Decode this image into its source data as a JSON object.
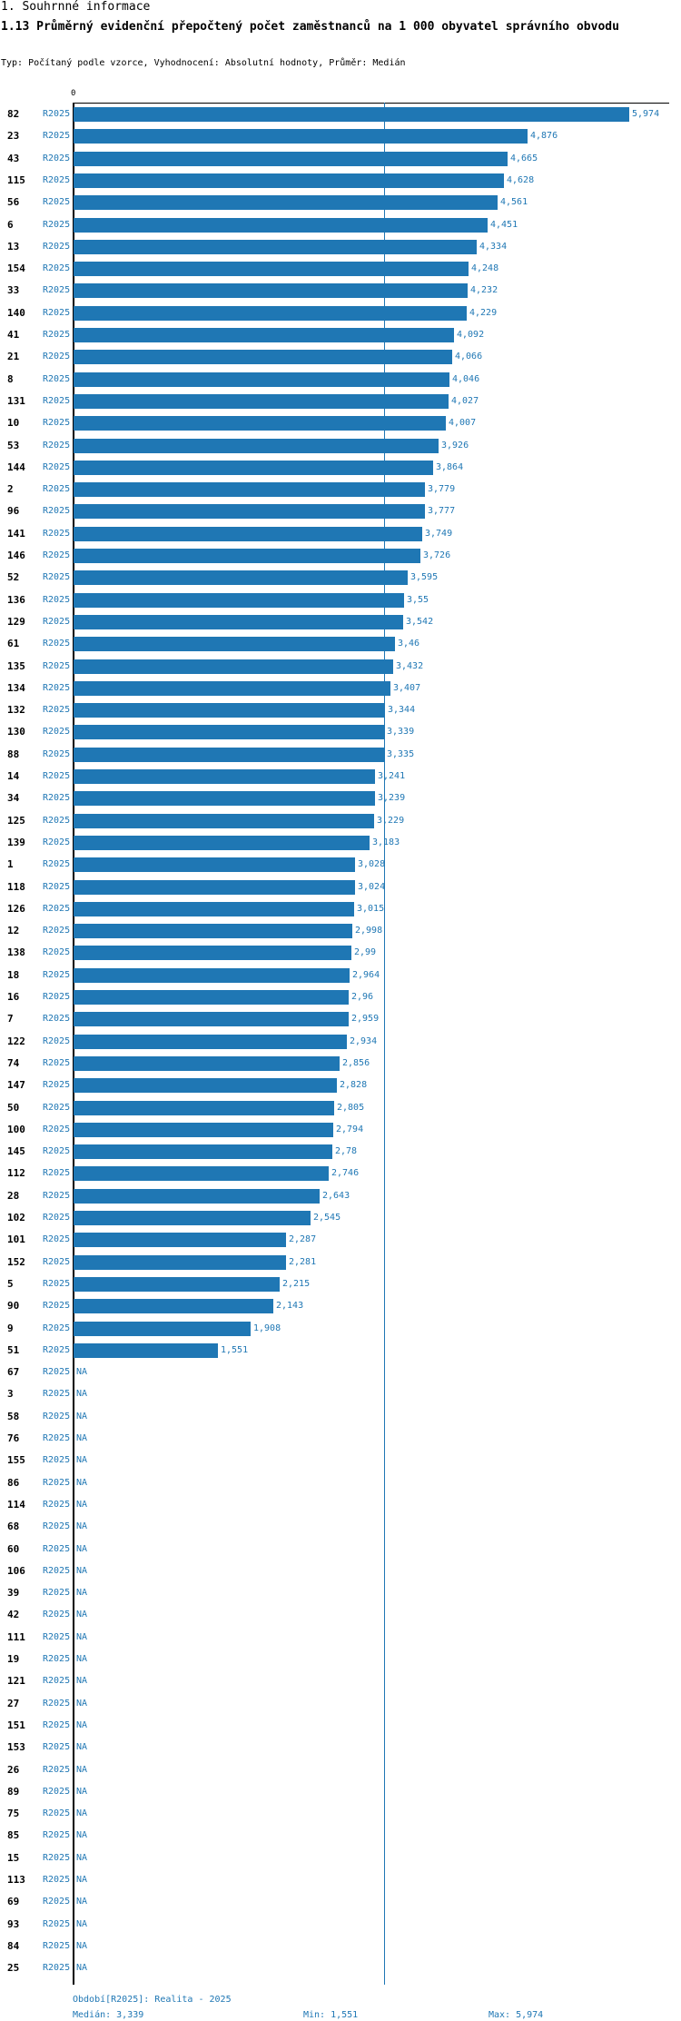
{
  "header": {
    "section": "1. Souhrnné informace",
    "title": "1.13 Průměrný evidenční přepočtený počet zaměstnanců na 1 000 obyvatel správního obvodu",
    "subtitle": "Typ: Počítaný podle vzorce, Vyhodnocení: Absolutní hodnoty, Průměr: Medián"
  },
  "chart_data": {
    "type": "bar",
    "orientation": "horizontal",
    "title": "1.13 Průměrný evidenční přepočtený počet zaměstnanců na 1 000 obyvatel správního obvodu",
    "series_name": "R2025",
    "axis_zero_label": "0",
    "xlim": [
      0,
      5974
    ],
    "median": 3339,
    "missing_label": "NA",
    "rows": [
      {
        "id": "82",
        "value": 5974,
        "label": "5,974"
      },
      {
        "id": "23",
        "value": 4876,
        "label": "4,876"
      },
      {
        "id": "43",
        "value": 4665,
        "label": "4,665"
      },
      {
        "id": "115",
        "value": 4628,
        "label": "4,628"
      },
      {
        "id": "56",
        "value": 4561,
        "label": "4,561"
      },
      {
        "id": "6",
        "value": 4451,
        "label": "4,451"
      },
      {
        "id": "13",
        "value": 4334,
        "label": "4,334"
      },
      {
        "id": "154",
        "value": 4248,
        "label": "4,248"
      },
      {
        "id": "33",
        "value": 4232,
        "label": "4,232"
      },
      {
        "id": "140",
        "value": 4229,
        "label": "4,229"
      },
      {
        "id": "41",
        "value": 4092,
        "label": "4,092"
      },
      {
        "id": "21",
        "value": 4066,
        "label": "4,066"
      },
      {
        "id": "8",
        "value": 4046,
        "label": "4,046"
      },
      {
        "id": "131",
        "value": 4027,
        "label": "4,027"
      },
      {
        "id": "10",
        "value": 4007,
        "label": "4,007"
      },
      {
        "id": "53",
        "value": 3926,
        "label": "3,926"
      },
      {
        "id": "144",
        "value": 3864,
        "label": "3,864"
      },
      {
        "id": "2",
        "value": 3779,
        "label": "3,779"
      },
      {
        "id": "96",
        "value": 3777,
        "label": "3,777"
      },
      {
        "id": "141",
        "value": 3749,
        "label": "3,749"
      },
      {
        "id": "146",
        "value": 3726,
        "label": "3,726"
      },
      {
        "id": "52",
        "value": 3595,
        "label": "3,595"
      },
      {
        "id": "136",
        "value": 3550,
        "label": "3,55"
      },
      {
        "id": "129",
        "value": 3542,
        "label": "3,542"
      },
      {
        "id": "61",
        "value": 3460,
        "label": "3,46"
      },
      {
        "id": "135",
        "value": 3432,
        "label": "3,432"
      },
      {
        "id": "134",
        "value": 3407,
        "label": "3,407"
      },
      {
        "id": "132",
        "value": 3344,
        "label": "3,344"
      },
      {
        "id": "130",
        "value": 3339,
        "label": "3,339"
      },
      {
        "id": "88",
        "value": 3335,
        "label": "3,335"
      },
      {
        "id": "14",
        "value": 3241,
        "label": "3,241"
      },
      {
        "id": "34",
        "value": 3239,
        "label": "3,239"
      },
      {
        "id": "125",
        "value": 3229,
        "label": "3,229"
      },
      {
        "id": "139",
        "value": 3183,
        "label": "3,183"
      },
      {
        "id": "1",
        "value": 3028,
        "label": "3,028"
      },
      {
        "id": "118",
        "value": 3024,
        "label": "3,024"
      },
      {
        "id": "126",
        "value": 3015,
        "label": "3,015"
      },
      {
        "id": "12",
        "value": 2998,
        "label": "2,998"
      },
      {
        "id": "138",
        "value": 2990,
        "label": "2,99"
      },
      {
        "id": "18",
        "value": 2964,
        "label": "2,964"
      },
      {
        "id": "16",
        "value": 2960,
        "label": "2,96"
      },
      {
        "id": "7",
        "value": 2959,
        "label": "2,959"
      },
      {
        "id": "122",
        "value": 2934,
        "label": "2,934"
      },
      {
        "id": "74",
        "value": 2856,
        "label": "2,856"
      },
      {
        "id": "147",
        "value": 2828,
        "label": "2,828"
      },
      {
        "id": "50",
        "value": 2805,
        "label": "2,805"
      },
      {
        "id": "100",
        "value": 2794,
        "label": "2,794"
      },
      {
        "id": "145",
        "value": 2780,
        "label": "2,78"
      },
      {
        "id": "112",
        "value": 2746,
        "label": "2,746"
      },
      {
        "id": "28",
        "value": 2643,
        "label": "2,643"
      },
      {
        "id": "102",
        "value": 2545,
        "label": "2,545"
      },
      {
        "id": "101",
        "value": 2287,
        "label": "2,287"
      },
      {
        "id": "152",
        "value": 2281,
        "label": "2,281"
      },
      {
        "id": "5",
        "value": 2215,
        "label": "2,215"
      },
      {
        "id": "90",
        "value": 2143,
        "label": "2,143"
      },
      {
        "id": "9",
        "value": 1908,
        "label": "1,908"
      },
      {
        "id": "51",
        "value": 1551,
        "label": "1,551"
      },
      {
        "id": "67",
        "value": null,
        "label": "NA"
      },
      {
        "id": "3",
        "value": null,
        "label": "NA"
      },
      {
        "id": "58",
        "value": null,
        "label": "NA"
      },
      {
        "id": "76",
        "value": null,
        "label": "NA"
      },
      {
        "id": "155",
        "value": null,
        "label": "NA"
      },
      {
        "id": "86",
        "value": null,
        "label": "NA"
      },
      {
        "id": "114",
        "value": null,
        "label": "NA"
      },
      {
        "id": "68",
        "value": null,
        "label": "NA"
      },
      {
        "id": "60",
        "value": null,
        "label": "NA"
      },
      {
        "id": "106",
        "value": null,
        "label": "NA"
      },
      {
        "id": "39",
        "value": null,
        "label": "NA"
      },
      {
        "id": "42",
        "value": null,
        "label": "NA"
      },
      {
        "id": "111",
        "value": null,
        "label": "NA"
      },
      {
        "id": "19",
        "value": null,
        "label": "NA"
      },
      {
        "id": "121",
        "value": null,
        "label": "NA"
      },
      {
        "id": "27",
        "value": null,
        "label": "NA"
      },
      {
        "id": "151",
        "value": null,
        "label": "NA"
      },
      {
        "id": "153",
        "value": null,
        "label": "NA"
      },
      {
        "id": "26",
        "value": null,
        "label": "NA"
      },
      {
        "id": "89",
        "value": null,
        "label": "NA"
      },
      {
        "id": "75",
        "value": null,
        "label": "NA"
      },
      {
        "id": "85",
        "value": null,
        "label": "NA"
      },
      {
        "id": "15",
        "value": null,
        "label": "NA"
      },
      {
        "id": "113",
        "value": null,
        "label": "NA"
      },
      {
        "id": "69",
        "value": null,
        "label": "NA"
      },
      {
        "id": "93",
        "value": null,
        "label": "NA"
      },
      {
        "id": "84",
        "value": null,
        "label": "NA"
      },
      {
        "id": "25",
        "value": null,
        "label": "NA"
      }
    ]
  },
  "footer": {
    "period": "Období[R2025]: Realita - 2025",
    "median": "Medián: 3,339",
    "min": "Min: 1,551",
    "max": "Max: 5,974"
  },
  "colors": {
    "bar": "#1f77b4",
    "text": "#000000"
  }
}
